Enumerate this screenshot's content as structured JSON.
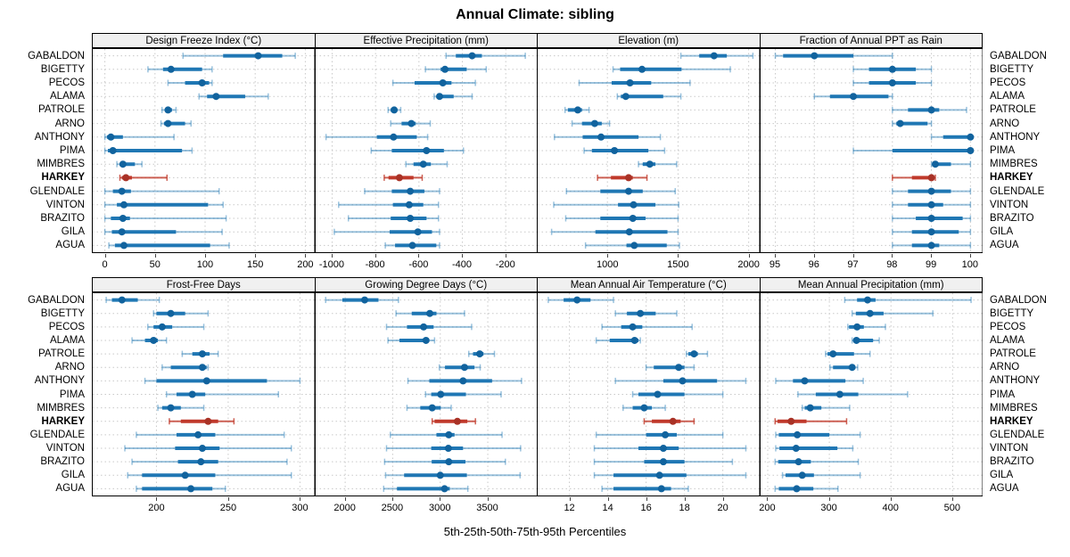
{
  "title": "Annual Climate: sibling",
  "xlabel": "5th-25th-50th-75th-95th Percentiles",
  "stations": [
    "GABALDON",
    "BIGETTY",
    "PECOS",
    "ALAMA",
    "PATROLE",
    "ARNO",
    "ANTHONY",
    "PIMA",
    "MIMBRES",
    "HARKEY",
    "GLENDALE",
    "VINTON",
    "BRAZITO",
    "GILA",
    "AGUA"
  ],
  "highlight_station": "HARKEY",
  "percentile_levels": [
    5,
    25,
    50,
    75,
    95
  ],
  "colors": {
    "blue_thick": "#1f77b4",
    "blue_dot": "#11639e",
    "blue_faint": "rgba(31,119,180,0.45)",
    "red_thick": "#c0392b",
    "red_dot": "#a93226",
    "red_faint": "rgba(192,57,43,0.8)",
    "header_bg": "#f0f0f0",
    "grid": "#c9c9c9",
    "border": "#000000"
  },
  "chart_data": [
    {
      "type": "percentile-dotplot",
      "title": "Design Freeze Index (°C)",
      "xlim": [
        -13,
        209
      ],
      "ticks": [
        0,
        50,
        100,
        150,
        200
      ],
      "values": [
        [
          78,
          118,
          153,
          177,
          190
        ],
        [
          43,
          58,
          66,
          97,
          107
        ],
        [
          63,
          80,
          97,
          104,
          107
        ],
        [
          94,
          102,
          111,
          140,
          163
        ],
        [
          57,
          60,
          63,
          67,
          71
        ],
        [
          56,
          59,
          63,
          80,
          86
        ],
        [
          0,
          2,
          6,
          18,
          69
        ],
        [
          0,
          3,
          8,
          77,
          87
        ],
        [
          12,
          15,
          18,
          30,
          37
        ],
        [
          15,
          17,
          21,
          27,
          62
        ],
        [
          0,
          8,
          17,
          26,
          114
        ],
        [
          0,
          12,
          19,
          103,
          118
        ],
        [
          0,
          6,
          18,
          25,
          121
        ],
        [
          0,
          7,
          17,
          71,
          117
        ],
        [
          4,
          10,
          19,
          105,
          124
        ]
      ]
    },
    {
      "type": "percentile-dotplot",
      "title": "Effective Precipitation (mm)",
      "xlim": [
        -1080,
        -55
      ],
      "ticks": [
        -1000,
        -800,
        -600,
        -400,
        -200
      ],
      "values": [
        [
          -475,
          -430,
          -355,
          -310,
          -110
        ],
        [
          -570,
          -500,
          -480,
          -380,
          -290
        ],
        [
          -720,
          -620,
          -490,
          -450,
          -340
        ],
        [
          -530,
          -515,
          -505,
          -440,
          -355
        ],
        [
          -742,
          -730,
          -714,
          -700,
          -684
        ],
        [
          -730,
          -680,
          -635,
          -615,
          -548
        ],
        [
          -1028,
          -794,
          -717,
          -610,
          -560
        ],
        [
          -820,
          -725,
          -565,
          -485,
          -395
        ],
        [
          -660,
          -625,
          -580,
          -545,
          -470
        ],
        [
          -760,
          -740,
          -690,
          -625,
          -585
        ],
        [
          -850,
          -725,
          -640,
          -575,
          -505
        ],
        [
          -970,
          -720,
          -645,
          -580,
          -510
        ],
        [
          -925,
          -730,
          -640,
          -565,
          -510
        ],
        [
          -990,
          -735,
          -605,
          -540,
          -505
        ],
        [
          -755,
          -710,
          -630,
          -520,
          -505
        ]
      ]
    },
    {
      "type": "percentile-dotplot",
      "title": "Elevation (m)",
      "xlim": [
        500,
        2075
      ],
      "ticks": [
        1000,
        1500,
        2000
      ],
      "values": [
        [
          1520,
          1650,
          1755,
          1845,
          2030
        ],
        [
          1040,
          1090,
          1245,
          1525,
          1870
        ],
        [
          800,
          1030,
          1160,
          1310,
          1585
        ],
        [
          1070,
          1095,
          1130,
          1395,
          1520
        ],
        [
          700,
          720,
          790,
          820,
          870
        ],
        [
          750,
          820,
          910,
          960,
          1015
        ],
        [
          625,
          825,
          955,
          1220,
          1375
        ],
        [
          835,
          890,
          1050,
          1290,
          1405
        ],
        [
          1220,
          1250,
          1300,
          1340,
          1490
        ],
        [
          930,
          1025,
          1150,
          1180,
          1280
        ],
        [
          710,
          950,
          1150,
          1250,
          1480
        ],
        [
          620,
          1075,
          1185,
          1340,
          1505
        ],
        [
          705,
          950,
          1180,
          1270,
          1500
        ],
        [
          605,
          915,
          1155,
          1425,
          1500
        ],
        [
          845,
          1135,
          1190,
          1420,
          1510
        ]
      ]
    },
    {
      "type": "percentile-dotplot",
      "title": "Fraction of Annual PPT as Rain",
      "xlim": [
        94.6,
        100.3
      ],
      "ticks": [
        95,
        96,
        97,
        98,
        99,
        100
      ],
      "values": [
        [
          95,
          95.2,
          96,
          97,
          98
        ],
        [
          97,
          97.4,
          98,
          98.6,
          99
        ],
        [
          97,
          97.4,
          98,
          98.6,
          99
        ],
        [
          96,
          96.4,
          97,
          97.9,
          98
        ],
        [
          98,
          98.4,
          99,
          99.2,
          99.9
        ],
        [
          98,
          98.1,
          98.2,
          98.9,
          99
        ],
        [
          99,
          99.3,
          100,
          100,
          100
        ],
        [
          97,
          98,
          100,
          100,
          100
        ],
        [
          99,
          99.05,
          99.1,
          99.5,
          100
        ],
        [
          98,
          98.5,
          99,
          99.05,
          99.1
        ],
        [
          98,
          98.4,
          99,
          99.5,
          100
        ],
        [
          98,
          98.4,
          99,
          99.3,
          100
        ],
        [
          98,
          98.6,
          99,
          99.8,
          100
        ],
        [
          98,
          98.5,
          99,
          99.7,
          100
        ],
        [
          98,
          98.5,
          99,
          99.2,
          100
        ]
      ]
    },
    {
      "type": "percentile-dotplot",
      "title": "Frost-Free Days",
      "xlim": [
        155,
        310
      ],
      "ticks": [
        200,
        250,
        300
      ],
      "values": [
        [
          165,
          169,
          176,
          187,
          202
        ],
        [
          198,
          200,
          210,
          220,
          236
        ],
        [
          194,
          198,
          204,
          211,
          233
        ],
        [
          183,
          192,
          198,
          201,
          207
        ],
        [
          218,
          225,
          232,
          237,
          243
        ],
        [
          204,
          210,
          232,
          235,
          236
        ],
        [
          192,
          200,
          235,
          277,
          300
        ],
        [
          207,
          214,
          225,
          234,
          285
        ],
        [
          201,
          204,
          210,
          217,
          233
        ],
        [
          209,
          217,
          236,
          243,
          254
        ],
        [
          186,
          214,
          229,
          241,
          289
        ],
        [
          178,
          213,
          232,
          244,
          294
        ],
        [
          183,
          215,
          231,
          243,
          291
        ],
        [
          180,
          190,
          220,
          241,
          294
        ],
        [
          186,
          190,
          224,
          239,
          248
        ]
      ]
    },
    {
      "type": "percentile-dotplot",
      "title": "Growing Degree Days (°C)",
      "xlim": [
        1680,
        4020
      ],
      "ticks": [
        2000,
        2500,
        3000,
        3500
      ],
      "values": [
        [
          1795,
          1970,
          2205,
          2350,
          2560
        ],
        [
          2535,
          2700,
          2890,
          2960,
          3255
        ],
        [
          2435,
          2650,
          2825,
          2930,
          3330
        ],
        [
          2450,
          2570,
          2850,
          2885,
          2940
        ],
        [
          3300,
          3345,
          3415,
          3455,
          3570
        ],
        [
          2990,
          3050,
          3255,
          3360,
          3420
        ],
        [
          2660,
          2885,
          3240,
          3545,
          3855
        ],
        [
          2845,
          2905,
          3005,
          3270,
          3640
        ],
        [
          2650,
          2790,
          2915,
          3005,
          3115
        ],
        [
          2915,
          2940,
          3180,
          3285,
          3370
        ],
        [
          2475,
          2960,
          3090,
          3150,
          3650
        ],
        [
          2435,
          2905,
          3085,
          3240,
          3845
        ],
        [
          2415,
          2910,
          3090,
          3265,
          3685
        ],
        [
          2425,
          2620,
          3000,
          3280,
          3840
        ],
        [
          2405,
          2545,
          3045,
          3100,
          3290
        ]
      ]
    },
    {
      "type": "percentile-dotplot",
      "title": "Mean Annual Air Temperature (°C)",
      "xlim": [
        10.3,
        21.9
      ],
      "ticks": [
        12,
        14,
        16,
        18,
        20
      ],
      "values": [
        [
          10.9,
          11.7,
          12.4,
          13.1,
          14.3
        ],
        [
          14.4,
          15.0,
          15.7,
          16.5,
          17.6
        ],
        [
          13.7,
          14.7,
          15.3,
          15.8,
          18.4
        ],
        [
          13.4,
          14.1,
          15.4,
          15.6,
          15.7
        ],
        [
          18.1,
          18.2,
          18.5,
          18.7,
          19.2
        ],
        [
          16.0,
          16.4,
          17.7,
          18.0,
          18.5
        ],
        [
          14.4,
          16.9,
          17.9,
          19.7,
          21.2
        ],
        [
          15.3,
          15.6,
          16.6,
          18.0,
          20.0
        ],
        [
          14.8,
          15.3,
          15.9,
          16.3,
          17.0
        ],
        [
          15.9,
          16.3,
          17.4,
          17.8,
          18.5
        ],
        [
          13.4,
          16.0,
          17.0,
          17.6,
          20.0
        ],
        [
          13.3,
          15.6,
          16.9,
          17.7,
          21.2
        ],
        [
          13.3,
          15.9,
          16.9,
          18.0,
          20.5
        ],
        [
          13.3,
          14.3,
          16.7,
          18.1,
          21.2
        ],
        [
          13.7,
          14.3,
          16.8,
          17.3,
          18.2
        ]
      ]
    },
    {
      "type": "percentile-dotplot",
      "title": "Mean Annual Precipitation (mm)",
      "xlim": [
        187,
        548
      ],
      "ticks": [
        200,
        300,
        400,
        500
      ],
      "values": [
        [
          325,
          345,
          362,
          375,
          530
        ],
        [
          337,
          343,
          366,
          388,
          468
        ],
        [
          330,
          332,
          345,
          356,
          391
        ],
        [
          337,
          340,
          344,
          371,
          381
        ],
        [
          294,
          297,
          306,
          340,
          366
        ],
        [
          301,
          306,
          337,
          342,
          346
        ],
        [
          213,
          241,
          260,
          326,
          355
        ],
        [
          249,
          278,
          317,
          347,
          427
        ],
        [
          256,
          260,
          269,
          287,
          333
        ],
        [
          212,
          216,
          238,
          263,
          328
        ],
        [
          213,
          218,
          248,
          300,
          350
        ],
        [
          213,
          219,
          246,
          313,
          338
        ],
        [
          212,
          217,
          250,
          270,
          347
        ],
        [
          224,
          229,
          256,
          275,
          350
        ],
        [
          212,
          218,
          247,
          274,
          314
        ]
      ]
    }
  ]
}
